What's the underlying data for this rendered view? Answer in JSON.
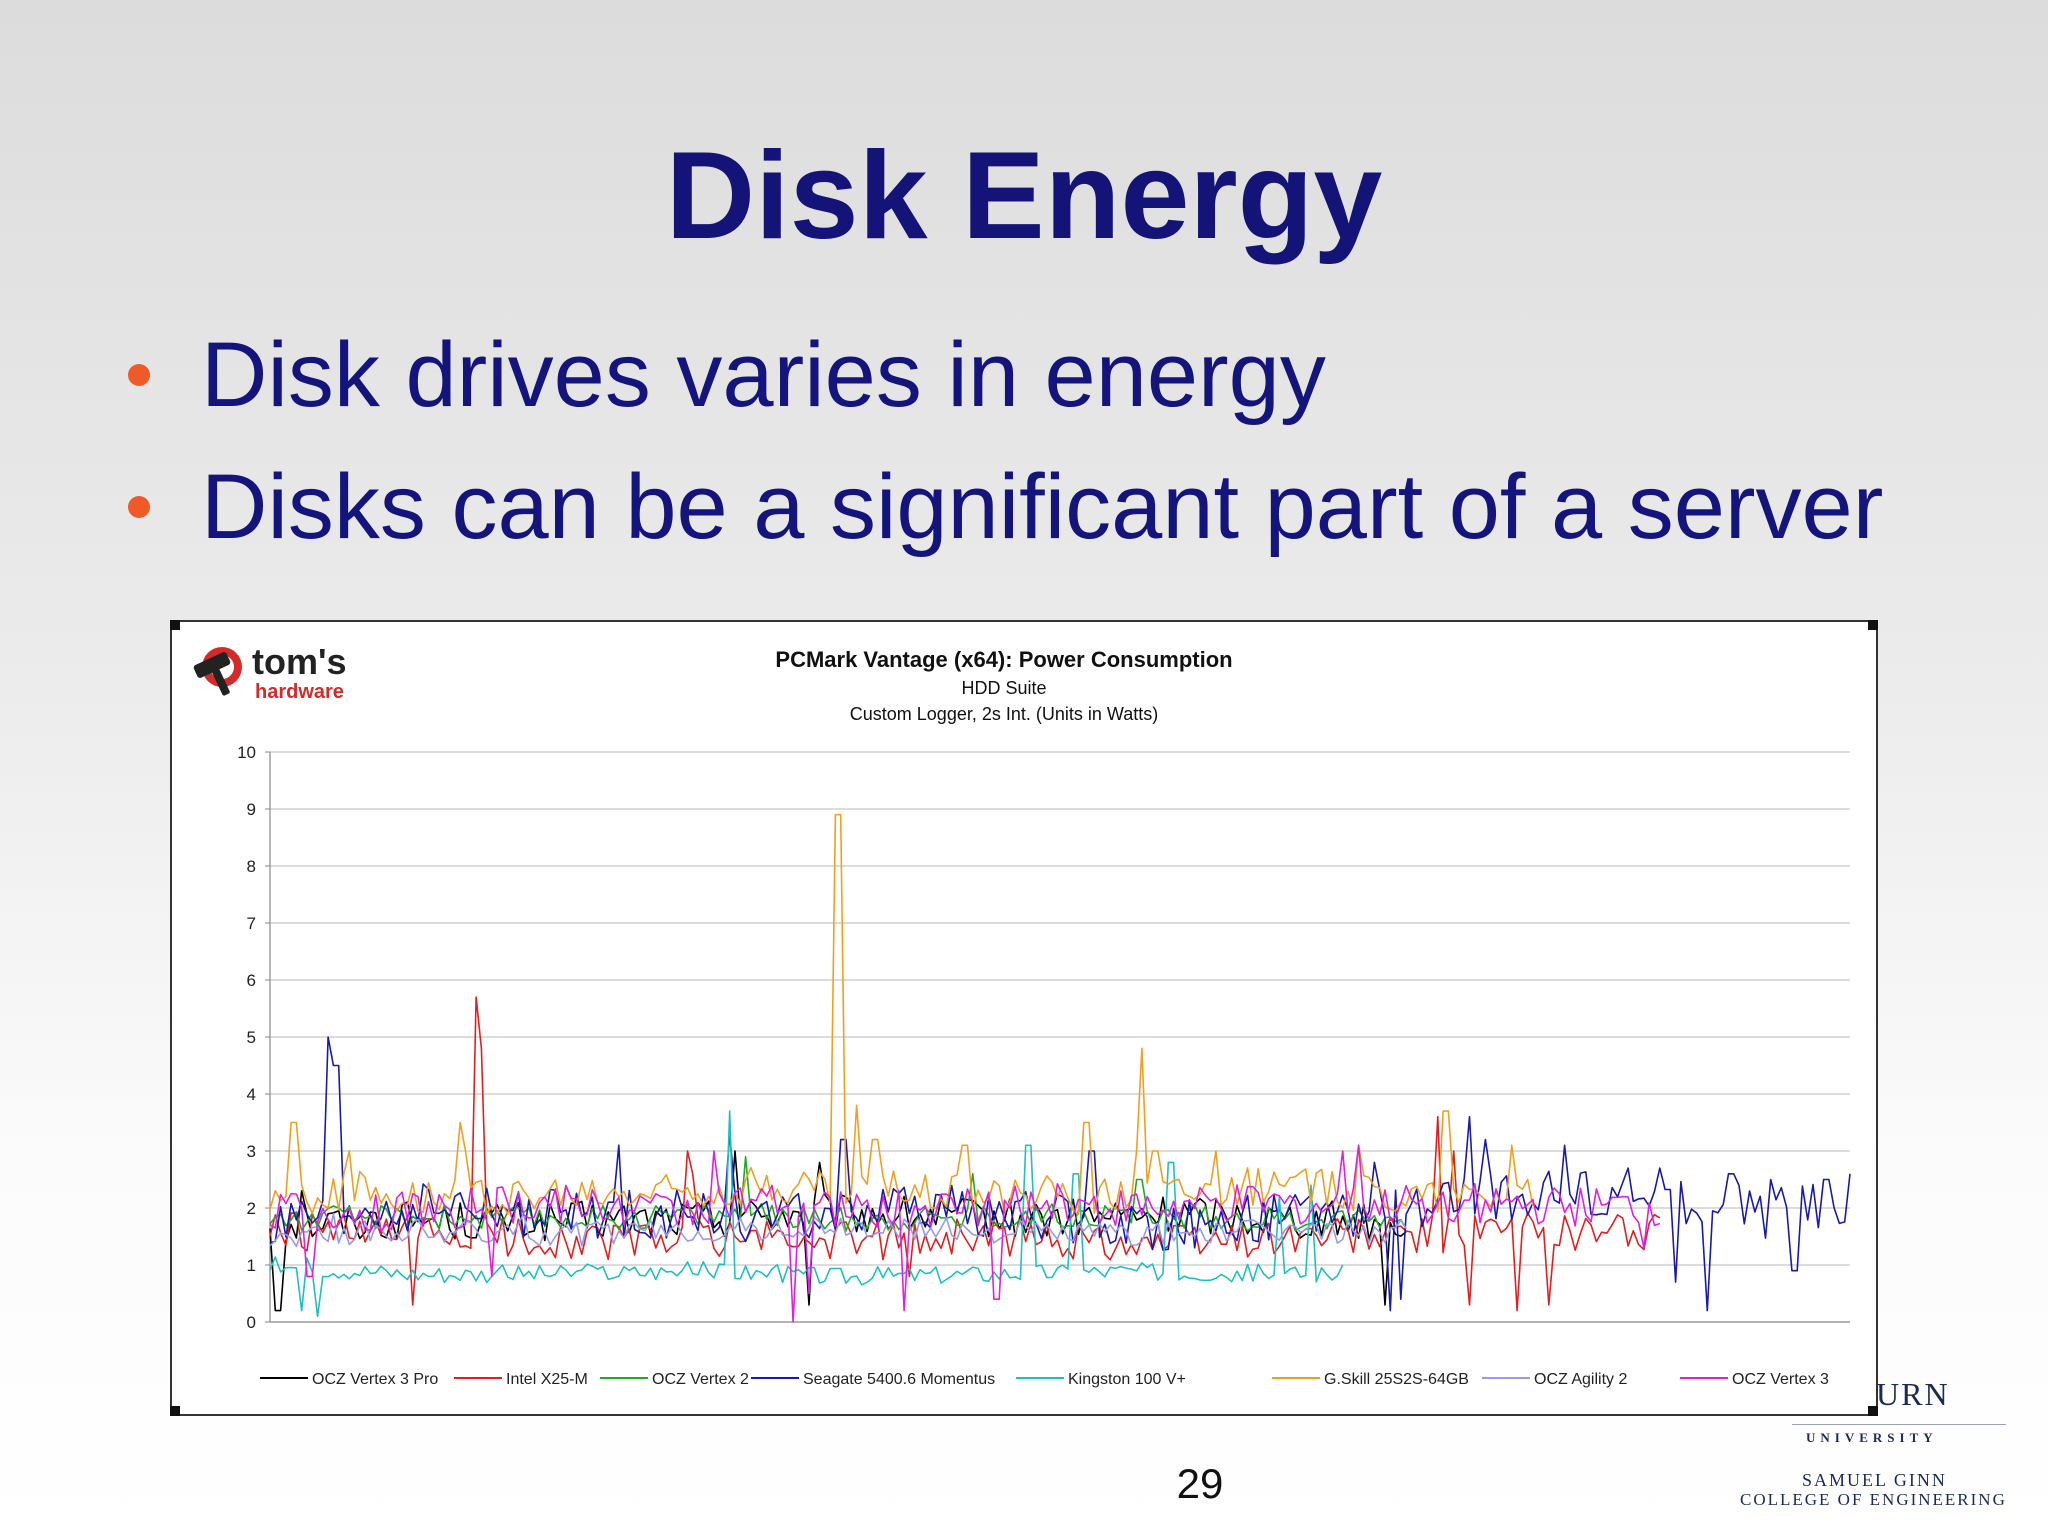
{
  "slide": {
    "title": "Disk Energy",
    "bullets": [
      "Disk drives varies in energy",
      "Disks can be a significant part of a server"
    ],
    "page_number": "29",
    "colors": {
      "title": "#141478",
      "bullet_text": "#14147d",
      "bullet_dot": "#f05a28"
    }
  },
  "logo": {
    "brand_top": "tom's",
    "brand_bottom": "hardware",
    "icon": "hammer-icon"
  },
  "footer_logo": {
    "partial_name": "URN",
    "university": "UNIVERSITY",
    "line1": "SAMUEL GINN",
    "line2": "COLLEGE OF ENGINEERING"
  },
  "chart_data": {
    "type": "line",
    "title": "PCMark Vantage (x64): Power Consumption",
    "subtitle": "HDD Suite",
    "subtitle2": "Custom Logger, 2s Int. (Units in Watts)",
    "ylim": [
      0,
      10
    ],
    "yticks": [
      "0",
      "1",
      "2",
      "3",
      "4",
      "5",
      "6",
      "7",
      "8",
      "9",
      "10"
    ],
    "grid": true,
    "legend_position": "bottom",
    "x_count": 300,
    "series": [
      {
        "name": "OCZ Vertex 3 Pro",
        "color": "#000000",
        "end": 0.72,
        "base": [
          1.7,
          1.8,
          1.75,
          1.8,
          1.9,
          1.85,
          1.8,
          1.9,
          1.8,
          1.75,
          1.8,
          1.85,
          1.9
        ],
        "noise": 0.35,
        "spikes": [
          [
            0.005,
            0.2
          ],
          [
            0.02,
            2.3
          ],
          [
            0.295,
            3.0
          ],
          [
            0.34,
            0.3
          ],
          [
            0.348,
            2.8
          ],
          [
            0.705,
            0.3
          ]
        ]
      },
      {
        "name": "Intel X25-M",
        "color": "#e02020",
        "end": 0.88,
        "base": [
          1.6,
          1.5,
          1.5,
          1.4,
          1.5,
          1.4,
          1.5,
          1.45,
          1.4,
          1.5,
          1.5,
          1.6,
          1.6,
          1.4,
          1.2
        ],
        "noise": 0.35,
        "spikes": [
          [
            0.09,
            0.3
          ],
          [
            0.131,
            5.7
          ],
          [
            0.134,
            4.8
          ],
          [
            0.265,
            3.0
          ],
          [
            0.268,
            2.6
          ],
          [
            0.405,
            0.8
          ],
          [
            0.75,
            3.0
          ],
          [
            0.74,
            3.6
          ],
          [
            0.758,
            0.3
          ],
          [
            0.81,
            0.3
          ],
          [
            0.79,
            0.2
          ]
        ]
      },
      {
        "name": "OCZ Vertex 2",
        "color": "#22aa22",
        "end": 0.72,
        "base": [
          1.8,
          1.85,
          1.8,
          1.9,
          1.8,
          1.85,
          1.9,
          1.8,
          1.85,
          1.8,
          1.8,
          1.9
        ],
        "noise": 0.22,
        "spikes": [
          [
            0.3,
            2.9
          ],
          [
            0.445,
            2.6
          ],
          [
            0.55,
            2.5
          ]
        ]
      },
      {
        "name": "Seagate 5400.6 Momentus",
        "color": "#1a1aaa",
        "end": 1.0,
        "base": [
          1.6,
          1.9,
          2.0,
          1.9,
          1.85,
          1.9,
          1.8,
          1.9,
          2.0,
          1.9,
          1.7,
          1.7,
          1.8,
          1.9,
          2.0,
          2.2,
          2.2,
          2.1,
          1.9,
          2.2
        ],
        "noise": 0.45,
        "spikes": [
          [
            0.038,
            5.0
          ],
          [
            0.042,
            4.5
          ],
          [
            0.22,
            3.1
          ],
          [
            0.29,
            3.3
          ],
          [
            0.363,
            3.2
          ],
          [
            0.52,
            3.0
          ],
          [
            0.7,
            2.8
          ],
          [
            0.71,
            0.2
          ],
          [
            0.715,
            0.4
          ],
          [
            0.76,
            3.6
          ],
          [
            0.77,
            3.2
          ],
          [
            0.82,
            3.1
          ],
          [
            0.88,
            2.7
          ],
          [
            0.86,
            2.7
          ],
          [
            0.89,
            0.7
          ],
          [
            0.91,
            0.2
          ],
          [
            0.925,
            2.6
          ],
          [
            0.95,
            2.5
          ],
          [
            0.965,
            0.9
          ],
          [
            0.985,
            2.5
          ],
          [
            1.0,
            2.6
          ]
        ]
      },
      {
        "name": "Kingston 100 V+",
        "color": "#20c0c0",
        "end": 0.68,
        "base": [
          1.0,
          0.85,
          0.85,
          0.9,
          0.8,
          0.85,
          0.9,
          0.85,
          0.85,
          0.9,
          0.8,
          0.85
        ],
        "noise": 0.16,
        "spikes": [
          [
            0.02,
            0.2
          ],
          [
            0.03,
            0.1
          ],
          [
            0.29,
            3.7
          ],
          [
            0.48,
            3.1
          ],
          [
            0.51,
            2.6
          ],
          [
            0.57,
            2.8
          ],
          [
            0.64,
            2.2
          ],
          [
            0.66,
            2.4
          ]
        ]
      },
      {
        "name": "G.Skill 25S2S-64GB",
        "color": "#f0a020",
        "end": 0.8,
        "base": [
          2.2,
          2.3,
          2.2,
          2.2,
          2.3,
          2.4,
          2.3,
          2.3,
          2.2,
          2.3,
          2.4,
          2.3,
          2.2,
          2.4,
          2.5,
          2.5,
          2.6
        ],
        "noise": 0.35,
        "spikes": [
          [
            0.015,
            3.5
          ],
          [
            0.05,
            3.0
          ],
          [
            0.12,
            3.5
          ],
          [
            0.125,
            3.0
          ],
          [
            0.36,
            3.5
          ],
          [
            0.359,
            8.9
          ],
          [
            0.362,
            8.9
          ],
          [
            0.371,
            3.8
          ],
          [
            0.383,
            3.2
          ],
          [
            0.44,
            3.1
          ],
          [
            0.517,
            3.5
          ],
          [
            0.55,
            3.0
          ],
          [
            0.551,
            4.8
          ],
          [
            0.56,
            3.0
          ],
          [
            0.6,
            3.0
          ],
          [
            0.69,
            3.1
          ],
          [
            0.744,
            3.7
          ],
          [
            0.785,
            3.1
          ],
          [
            0.795,
            2.5
          ]
        ]
      },
      {
        "name": "OCZ Agility 2",
        "color": "#9a9ae8",
        "end": 0.72,
        "base": [
          1.5,
          1.6,
          1.55,
          1.6,
          1.65,
          1.6,
          1.55,
          1.6,
          1.6,
          1.55,
          1.6,
          1.5
        ],
        "noise": 0.22,
        "spikes": [
          [
            0.04,
            1.9
          ],
          [
            0.16,
            1.9
          ]
        ]
      },
      {
        "name": "OCZ Vertex 3",
        "color": "#e020e0",
        "end": 0.88,
        "base": [
          2.0,
          1.9,
          2.0,
          2.1,
          2.0,
          2.1,
          2.0,
          2.0,
          2.1,
          2.0,
          2.1,
          2.0,
          2.1,
          2.0,
          2.0,
          1.9,
          1.2
        ],
        "noise": 0.35,
        "spikes": [
          [
            0.025,
            0.8
          ],
          [
            0.14,
            0.8
          ],
          [
            0.28,
            3.0
          ],
          [
            0.33,
            0.0
          ],
          [
            0.34,
            0.5
          ],
          [
            0.4,
            0.2
          ],
          [
            0.46,
            0.4
          ],
          [
            0.68,
            3.0
          ],
          [
            0.69,
            3.1
          ],
          [
            0.87,
            1.3
          ]
        ]
      }
    ]
  }
}
